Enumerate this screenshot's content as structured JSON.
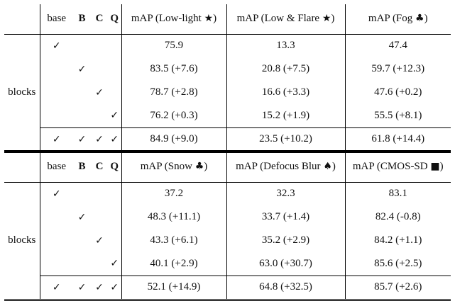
{
  "table1": {
    "row_label": "blocks",
    "headers": {
      "base": "base",
      "b": "B",
      "c": "C",
      "q": "Q",
      "col1": "mAP (Low-light",
      "col1_sym": "★",
      "col1_tail": ")",
      "col2": "mAP (Low & Flare",
      "col2_sym": "★",
      "col2_tail": ")",
      "col3": "mAP (Fog",
      "col3_sym": "♣",
      "col3_tail": ")"
    },
    "rows": [
      {
        "base": "✓",
        "b": "",
        "c": "",
        "q": "",
        "v1": "75.9",
        "v2": "13.3",
        "v3": "47.4"
      },
      {
        "base": "",
        "b": "✓",
        "c": "",
        "q": "",
        "v1": "83.5 (+7.6)",
        "v2": "20.8 (+7.5)",
        "v3": "59.7 (+12.3)"
      },
      {
        "base": "",
        "b": "",
        "c": "✓",
        "q": "",
        "v1": "78.7 (+2.8)",
        "v2": "16.6 (+3.3)",
        "v3": "47.6 (+0.2)"
      },
      {
        "base": "",
        "b": "",
        "c": "",
        "q": "✓",
        "v1": "76.2 (+0.3)",
        "v2": "15.2 (+1.9)",
        "v3": "55.5 (+8.1)"
      },
      {
        "base": "✓",
        "b": "✓",
        "c": "✓",
        "q": "✓",
        "v1": "84.9 (+9.0)",
        "v2": "23.5 (+10.2)",
        "v3": "61.8 (+14.4)"
      }
    ]
  },
  "table2": {
    "row_label": "blocks",
    "headers": {
      "base": "base",
      "b": "B",
      "c": "C",
      "q": "Q",
      "col1": "mAP (Snow",
      "col1_sym": "♣",
      "col1_tail": ")",
      "col2": "mAP (Defocus Blur",
      "col2_sym": "♠",
      "col2_tail": ")",
      "col3": "mAP (CMOS-SD",
      "col3_sym": "■",
      "col3_tail": ")"
    },
    "rows": [
      {
        "base": "✓",
        "b": "",
        "c": "",
        "q": "",
        "v1": "37.2",
        "v2": "32.3",
        "v3": "83.1"
      },
      {
        "base": "",
        "b": "✓",
        "c": "",
        "q": "",
        "v1": "48.3 (+11.1)",
        "v2": "33.7 (+1.4)",
        "v3": "82.4 (-0.8)"
      },
      {
        "base": "",
        "b": "",
        "c": "✓",
        "q": "",
        "v1": "43.3 (+6.1)",
        "v2": "35.2 (+2.9)",
        "v3": "84.2 (+1.1)"
      },
      {
        "base": "",
        "b": "",
        "c": "",
        "q": "✓",
        "v1": "40.1 (+2.9)",
        "v2": "63.0 (+30.7)",
        "v3": "85.6 (+2.5)"
      },
      {
        "base": "✓",
        "b": "✓",
        "c": "✓",
        "q": "✓",
        "v1": "52.1 (+14.9)",
        "v2": "64.8 (+32.5)",
        "v3": "85.7 (+2.6)"
      }
    ]
  }
}
